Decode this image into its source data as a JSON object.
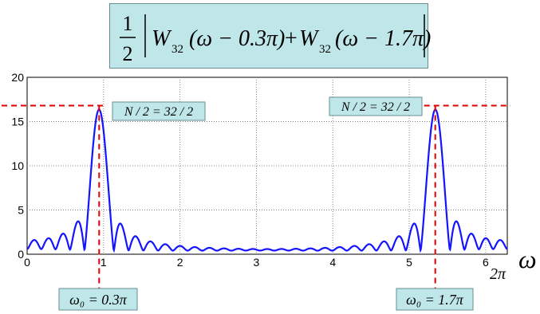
{
  "formula": {
    "fraction_num": "1",
    "fraction_den": "2",
    "term1_func": "W",
    "term1_sub": "32",
    "term1_arg": "(ω − 0.3π)",
    "plus": "+",
    "term2_func": "W",
    "term2_sub": "32",
    "term2_arg": "(ω − 1.7π)"
  },
  "annotations": {
    "peak_left_label": "N / 2 = 32 / 2",
    "peak_right_label": "N / 2 = 32 / 2",
    "omega_left_label": "ω₀ = 0.3π",
    "omega_right_label": "ω₀ = 1.7π",
    "axis_symbol": "ω",
    "two_pi_label": "2π"
  },
  "colors": {
    "curve": "#1414ff",
    "dashed": "#e00000",
    "label_bg": "#bfe6e8"
  },
  "chart_data": {
    "type": "line",
    "xlim": [
      0,
      6.2832
    ],
    "ylim": [
      0,
      20
    ],
    "xticks": [
      "0",
      "1",
      "2",
      "3",
      "4",
      "5",
      "6"
    ],
    "yticks": [
      "0",
      "5",
      "10",
      "15",
      "20"
    ],
    "grid": true,
    "N": 32,
    "peak_value": 16,
    "series": [
      {
        "centers": [
          0.9425,
          5.3407
        ],
        "peak": 16
      }
    ]
  }
}
